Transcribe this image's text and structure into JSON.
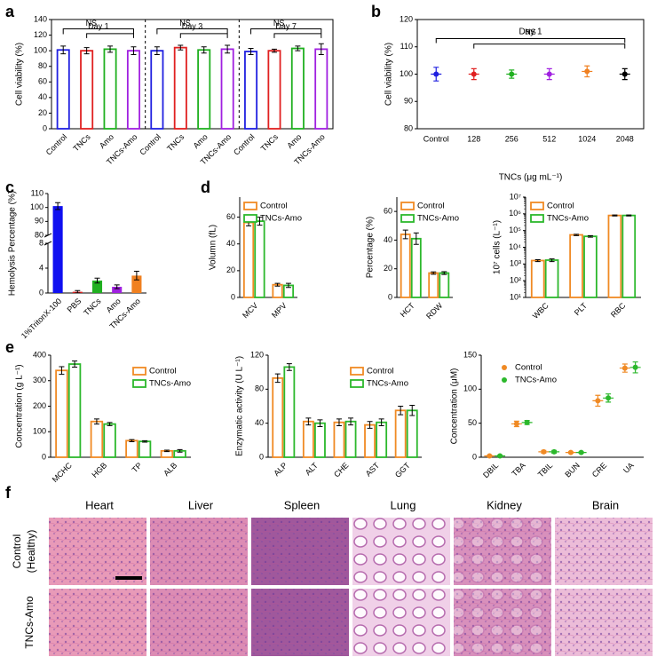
{
  "panel_labels": [
    "a",
    "b",
    "c",
    "d",
    "e",
    "f"
  ],
  "chart_data": [
    {
      "type": "bar",
      "bar_style": "outline",
      "ylabel": "Cell viability (%)",
      "categories": [
        "Control",
        "TNCs",
        "Amo",
        "TNCs-Amo",
        "Control",
        "TNCs",
        "Amo",
        "TNCs-Amo",
        "Control",
        "TNCs",
        "Amo",
        "TNCs-Amo"
      ],
      "values": [
        101,
        100,
        102,
        100,
        100,
        104,
        101,
        102,
        99,
        100,
        103,
        102
      ],
      "errors": [
        5,
        4,
        4,
        5,
        5,
        3,
        4,
        5,
        4,
        2,
        3,
        7
      ],
      "colors": [
        "#2020e0",
        "#e02020",
        "#20b020",
        "#a020e0",
        "#2020e0",
        "#e02020",
        "#20b020",
        "#a020e0",
        "#2020e0",
        "#e02020",
        "#20b020",
        "#a020e0"
      ],
      "groups": [
        {
          "label": "Day 1",
          "note": "NS"
        },
        {
          "label": "Day 3",
          "note": "NS"
        },
        {
          "label": "Day 7",
          "note": "NS"
        }
      ],
      "ylim": [
        0,
        140
      ],
      "yticks": [
        0,
        20,
        40,
        60,
        80,
        100,
        120,
        140
      ]
    },
    {
      "type": "dot",
      "title": "Day 1",
      "note": "NS",
      "ylabel": "Cell viability (%)",
      "xlabel": "TNCs (μg mL⁻¹)",
      "categories": [
        "Control",
        "128",
        "256",
        "512",
        "1024",
        "2048"
      ],
      "values": [
        100,
        100,
        100,
        100,
        101,
        100
      ],
      "errors": [
        2.5,
        2,
        1.5,
        2,
        2,
        2
      ],
      "colors": [
        "#2020e0",
        "#e02020",
        "#20b020",
        "#a020e0",
        "#f08020",
        "#000000"
      ],
      "ylim": [
        80,
        120
      ],
      "yticks": [
        80,
        90,
        100,
        110,
        120
      ]
    },
    {
      "type": "bar",
      "bar_style": "solid",
      "ylabel": "Hemolysis  Percentage (%)",
      "categories": [
        "1%TritonX-100",
        "PBS",
        "TNCs",
        "Amo",
        "TNCs-Amo"
      ],
      "values": [
        101,
        0.2,
        2,
        1,
        2.8
      ],
      "errors": [
        2.5,
        0.2,
        0.4,
        0.3,
        0.7
      ],
      "colors": [
        "#1010f0",
        "#e02020",
        "#20b020",
        "#a020e0",
        "#f08020"
      ],
      "ylim": [
        0,
        110
      ],
      "ybreak": [
        8,
        80
      ],
      "yticks": [
        0,
        4,
        8,
        80,
        90,
        100,
        110
      ]
    },
    {
      "type": "bar",
      "bar_style": "outline",
      "ylabel": "Volumn (fL)",
      "categories": [
        "MCV",
        "MPV"
      ],
      "series": [
        {
          "name": "Control",
          "color": "#f08a24",
          "values": [
            56,
            9.5
          ],
          "errors": [
            2.5,
            1
          ]
        },
        {
          "name": "TNCs-Amo",
          "color": "#2cb82c",
          "values": [
            57,
            9
          ],
          "errors": [
            3,
            1.5
          ]
        }
      ],
      "ylim": [
        0,
        75
      ],
      "yticks": [
        0,
        20,
        40,
        60
      ]
    },
    {
      "type": "bar",
      "bar_style": "outline",
      "ylabel": "Percentage (%)",
      "categories": [
        "HCT",
        "RDW"
      ],
      "series": [
        {
          "name": "Control",
          "color": "#f08a24",
          "values": [
            44,
            17
          ],
          "errors": [
            3,
            0.8
          ]
        },
        {
          "name": "TNCs-Amo",
          "color": "#2cb82c",
          "values": [
            41,
            17
          ],
          "errors": [
            4,
            1
          ]
        }
      ],
      "ylim": [
        0,
        70
      ],
      "yticks": [
        0,
        20,
        40,
        60
      ]
    },
    {
      "type": "bar",
      "bar_style": "outline",
      "log": true,
      "ylabel": "10⁷ cells (L⁻¹)",
      "categories": [
        "WBC",
        "PLT",
        "RBC"
      ],
      "series": [
        {
          "name": "Control",
          "color": "#f08a24",
          "values": [
            1600,
            55000,
            800000
          ],
          "errors": [
            200,
            5000,
            60000
          ]
        },
        {
          "name": "TNCs-Amo",
          "color": "#2cb82c",
          "values": [
            1700,
            45000,
            800000
          ],
          "errors": [
            300,
            5000,
            60000
          ]
        }
      ],
      "ylim": [
        10,
        10000000
      ],
      "yticks": [
        {
          "value": 10,
          "label": "10¹"
        },
        {
          "value": 100,
          "label": "10²"
        },
        {
          "value": 1000,
          "label": "10³"
        },
        {
          "value": 10000,
          "label": "10⁴"
        },
        {
          "value": 100000,
          "label": "10⁵"
        },
        {
          "value": 1000000,
          "label": "10⁶"
        },
        {
          "value": 10000000,
          "label": "10⁷"
        }
      ]
    },
    {
      "type": "bar",
      "bar_style": "outline",
      "ylabel": "Concentration  (g L⁻¹)",
      "categories": [
        "MCHC",
        "HGB",
        "TP",
        "ALB"
      ],
      "series": [
        {
          "name": "Control",
          "color": "#f08a24",
          "values": [
            340,
            140,
            65,
            25
          ],
          "errors": [
            15,
            10,
            4,
            3
          ]
        },
        {
          "name": "TNCs-Amo",
          "color": "#2cb82c",
          "values": [
            365,
            130,
            62,
            25
          ],
          "errors": [
            12,
            6,
            3,
            5
          ]
        }
      ],
      "ylim": [
        0,
        400
      ],
      "yticks": [
        0,
        100,
        200,
        300,
        400
      ]
    },
    {
      "type": "bar",
      "bar_style": "outline",
      "ylabel": "Enzymatic activity (U L⁻¹)",
      "categories": [
        "ALP",
        "ALT",
        "CHE",
        "AST",
        "GGT"
      ],
      "series": [
        {
          "name": "Control",
          "color": "#f08a24",
          "values": [
            93,
            42,
            41,
            38,
            55
          ],
          "errors": [
            5,
            4,
            4,
            4,
            5
          ]
        },
        {
          "name": "TNCs-Amo",
          "color": "#2cb82c",
          "values": [
            106,
            40,
            42,
            41,
            55
          ],
          "errors": [
            4,
            4,
            4,
            4,
            6
          ]
        }
      ],
      "ylim": [
        0,
        120
      ],
      "yticks": [
        0,
        40,
        80,
        120
      ]
    },
    {
      "type": "dot",
      "ylabel": "Concentration (μM)",
      "categories": [
        "DBIL",
        "TBA",
        "TBIL",
        "BUN",
        "CRE",
        "UA"
      ],
      "series": [
        {
          "name": "Control",
          "color": "#f08a24",
          "values": [
            2,
            49,
            8,
            7,
            83,
            131
          ],
          "errors": [
            1,
            4,
            2,
            1,
            8,
            6
          ]
        },
        {
          "name": "TNCs-Amo",
          "color": "#2cb82c",
          "values": [
            2,
            51,
            8,
            7,
            87,
            132
          ],
          "errors": [
            1,
            3,
            2,
            1,
            6,
            8
          ]
        }
      ],
      "ylim": [
        0,
        150
      ],
      "yticks": [
        0,
        50,
        100,
        150
      ]
    }
  ],
  "histology": {
    "columns": [
      "Heart",
      "Liver",
      "Spleen",
      "Lung",
      "Kidney",
      "Brain"
    ],
    "rows": [
      [
        "Control",
        "(Healthy)"
      ],
      [
        "TNCs-Amo"
      ]
    ]
  }
}
